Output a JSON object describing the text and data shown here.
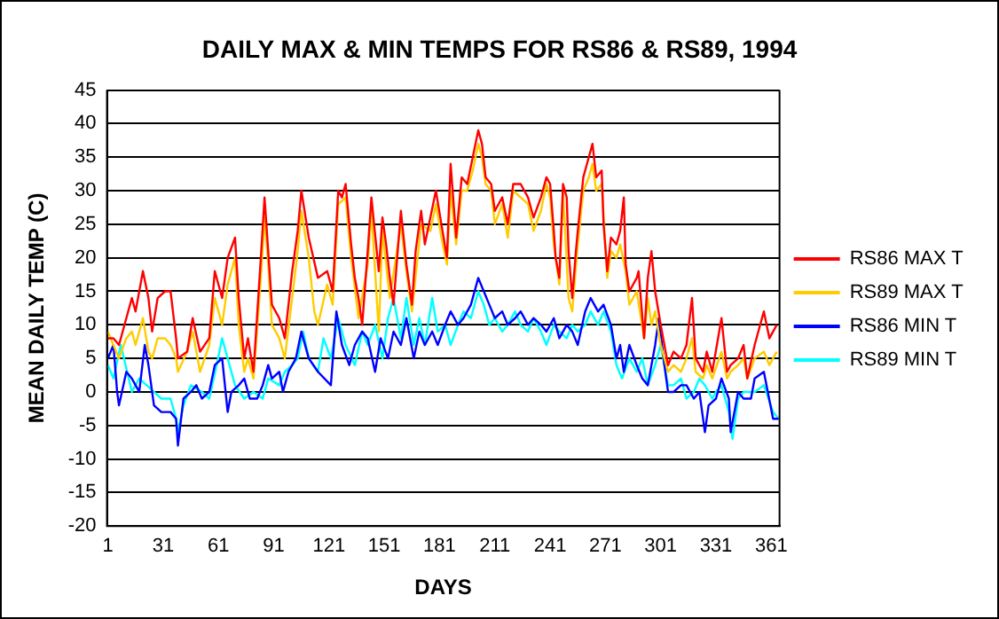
{
  "chart_data": {
    "type": "line",
    "title": "DAILY MAX & MIN TEMPS FOR RS86 & RS89, 1994",
    "xlabel": "DAYS",
    "ylabel": "MEAN DAILY TEMP (C)",
    "xlim": [
      0.5,
      365.5
    ],
    "xticks": [
      1,
      31,
      61,
      91,
      121,
      151,
      181,
      211,
      241,
      271,
      301,
      331,
      361
    ],
    "ylim": [
      -20,
      45
    ],
    "yticks": [
      -20,
      -15,
      -10,
      -5,
      0,
      5,
      10,
      15,
      20,
      25,
      30,
      35,
      40,
      45
    ],
    "grid": "y",
    "legend": "right",
    "marker": "none",
    "line_style": "solid",
    "series": [
      {
        "name": "RS86 MAX T",
        "color": "#ff0000",
        "x": [
          1,
          4,
          7,
          11,
          14,
          16,
          20,
          23,
          25,
          28,
          32,
          35,
          38,
          39,
          44,
          47,
          51,
          56,
          59,
          63,
          66,
          70,
          72,
          75,
          77,
          80,
          84,
          86,
          88,
          90,
          94,
          97,
          101,
          104,
          106,
          110,
          115,
          120,
          123,
          126,
          128,
          130,
          133,
          135,
          137,
          139,
          142,
          144,
          148,
          150,
          152,
          154,
          156,
          160,
          163,
          166,
          168,
          171,
          173,
          176,
          179,
          182,
          185,
          187,
          190,
          193,
          196,
          199,
          202,
          204,
          206,
          209,
          211,
          215,
          218,
          221,
          225,
          229,
          232,
          236,
          239,
          241,
          243,
          244,
          246,
          248,
          250,
          251,
          253,
          255,
          256,
          259,
          262,
          264,
          266,
          269,
          270,
          272,
          274,
          277,
          279,
          281,
          282,
          284,
          288,
          289,
          292,
          294,
          296,
          298,
          301,
          305,
          308,
          312,
          315,
          318,
          320,
          324,
          326,
          329,
          334,
          337,
          339,
          343,
          346,
          348,
          352,
          357,
          360,
          364
        ],
        "values": [
          8,
          8,
          7,
          11,
          14,
          12,
          18,
          14,
          9,
          14,
          15,
          15,
          8,
          5,
          6,
          11,
          6,
          8,
          18,
          14,
          20,
          23,
          14,
          5,
          8,
          3,
          20,
          29,
          21,
          13,
          11,
          8,
          18,
          24,
          30,
          23,
          17,
          18,
          15,
          30,
          29,
          31,
          22,
          17,
          14,
          10,
          21,
          29,
          18,
          26,
          22,
          17,
          13,
          27,
          19,
          13,
          21,
          27,
          22,
          26,
          30,
          25,
          20,
          34,
          23,
          32,
          31,
          35,
          39,
          37,
          32,
          31,
          27,
          29,
          25,
          31,
          31,
          29,
          26,
          29,
          32,
          31,
          24,
          20,
          17,
          31,
          29,
          21,
          14,
          21,
          24,
          32,
          35,
          37,
          32,
          33,
          25,
          18,
          23,
          22,
          24,
          29,
          19,
          15,
          17,
          18,
          8,
          17,
          21,
          15,
          10,
          4,
          6,
          5,
          7,
          14,
          5,
          3,
          6,
          3,
          11,
          3,
          4,
          5,
          7,
          2,
          7,
          12,
          8,
          10
        ]
      },
      {
        "name": "RS89 MAX T",
        "color": "#ffcc00",
        "x": [
          1,
          4,
          7,
          11,
          14,
          16,
          20,
          23,
          25,
          28,
          32,
          35,
          38,
          39,
          44,
          47,
          51,
          56,
          59,
          63,
          66,
          70,
          72,
          75,
          77,
          80,
          84,
          86,
          88,
          90,
          94,
          97,
          101,
          104,
          106,
          110,
          113,
          115,
          120,
          123,
          126,
          130,
          133,
          137,
          142,
          144,
          148,
          150,
          154,
          160,
          163,
          166,
          171,
          176,
          179,
          182,
          185,
          187,
          190,
          193,
          196,
          199,
          202,
          204,
          206,
          209,
          211,
          215,
          218,
          221,
          225,
          229,
          232,
          236,
          239,
          241,
          243,
          246,
          248,
          251,
          253,
          256,
          259,
          262,
          264,
          266,
          269,
          272,
          274,
          277,
          279,
          282,
          284,
          288,
          292,
          294,
          296,
          298,
          301,
          305,
          308,
          312,
          315,
          318,
          320,
          324,
          326,
          329,
          334,
          337,
          339,
          343,
          346,
          348,
          352,
          357,
          360,
          364
        ],
        "values": [
          9,
          7,
          5,
          8,
          9,
          7,
          11,
          6,
          5,
          8,
          8,
          7,
          5,
          3,
          6,
          9,
          3,
          7,
          14,
          10,
          16,
          20,
          10,
          3,
          5,
          2,
          17,
          26,
          19,
          10,
          8,
          5,
          14,
          21,
          27,
          20,
          12,
          10,
          16,
          13,
          28,
          29,
          20,
          11,
          19,
          27,
          9,
          24,
          14,
          25,
          18,
          12,
          25,
          24,
          28,
          23,
          19,
          30,
          22,
          30,
          30,
          33,
          37,
          35,
          31,
          30,
          25,
          28,
          23,
          30,
          29,
          28,
          24,
          27,
          31,
          29,
          22,
          16,
          30,
          14,
          12,
          22,
          30,
          32,
          34,
          30,
          31,
          17,
          21,
          20,
          22,
          18,
          13,
          15,
          8,
          14,
          10,
          12,
          7,
          3,
          4,
          3,
          5,
          8,
          3,
          2,
          4,
          2,
          6,
          2,
          3,
          4,
          5,
          2,
          5,
          6,
          4,
          6
        ]
      },
      {
        "name": "RS86 MIN T",
        "color": "#0000ff",
        "x": [
          1,
          4,
          6,
          7,
          11,
          14,
          18,
          21,
          23,
          26,
          30,
          35,
          38,
          39,
          42,
          46,
          49,
          52,
          56,
          59,
          63,
          66,
          68,
          72,
          75,
          78,
          82,
          85,
          88,
          90,
          94,
          96,
          99,
          103,
          106,
          110,
          115,
          122,
          125,
          128,
          132,
          135,
          139,
          142,
          146,
          149,
          153,
          156,
          160,
          163,
          167,
          170,
          173,
          177,
          180,
          184,
          187,
          191,
          194,
          198,
          202,
          205,
          208,
          211,
          215,
          218,
          222,
          225,
          229,
          232,
          236,
          239,
          243,
          246,
          250,
          253,
          256,
          260,
          263,
          267,
          270,
          274,
          277,
          279,
          281,
          284,
          288,
          291,
          294,
          298,
          300,
          303,
          305,
          308,
          312,
          315,
          319,
          322,
          325,
          327,
          331,
          334,
          338,
          339,
          343,
          346,
          350,
          352,
          357,
          362,
          365
        ],
        "values": [
          5,
          7,
          0,
          -2,
          3,
          2,
          0,
          7,
          4,
          -2,
          -3,
          -3,
          -4,
          -8,
          -1,
          0,
          1,
          -1,
          0,
          4,
          5,
          -3,
          0,
          1,
          2,
          -1,
          -1,
          1,
          4,
          2,
          3,
          0,
          3,
          5,
          9,
          5,
          3,
          1,
          12,
          7,
          4,
          7,
          9,
          8,
          3,
          8,
          5,
          9,
          7,
          11,
          5,
          9,
          7,
          9,
          7,
          10,
          12,
          10,
          11,
          13,
          17,
          15,
          13,
          11,
          12,
          10,
          11,
          12,
          10,
          11,
          10,
          9,
          11,
          8,
          10,
          9,
          7,
          12,
          14,
          12,
          13,
          10,
          5,
          7,
          3,
          7,
          4,
          2,
          1,
          7,
          11,
          4,
          0,
          0,
          1,
          1,
          -1,
          0,
          -6,
          -2,
          -1,
          2,
          -1,
          -6,
          0,
          -1,
          -1,
          2,
          3,
          -4,
          -4
        ]
      },
      {
        "name": "RS89 MIN T",
        "color": "#00ffff",
        "x": [
          1,
          4,
          8,
          14,
          18,
          22,
          26,
          30,
          35,
          38,
          39,
          42,
          46,
          52,
          56,
          60,
          63,
          66,
          70,
          75,
          80,
          85,
          88,
          94,
          97,
          101,
          104,
          107,
          110,
          115,
          118,
          122,
          126,
          130,
          135,
          139,
          142,
          146,
          150,
          153,
          156,
          160,
          163,
          167,
          170,
          173,
          177,
          180,
          184,
          187,
          191,
          194,
          198,
          202,
          205,
          208,
          211,
          215,
          218,
          222,
          225,
          229,
          232,
          236,
          239,
          243,
          246,
          250,
          253,
          256,
          260,
          263,
          267,
          270,
          274,
          277,
          280,
          284,
          288,
          291,
          294,
          298,
          301,
          305,
          308,
          312,
          315,
          319,
          322,
          325,
          329,
          331,
          334,
          338,
          340,
          343,
          346,
          350,
          352,
          357,
          362,
          365
        ],
        "values": [
          4,
          2,
          7,
          0,
          2,
          1,
          0,
          -1,
          -1,
          -4,
          -6,
          -2,
          1,
          0,
          -1,
          4,
          8,
          5,
          1,
          -1,
          0,
          -1,
          2,
          1,
          3,
          4,
          5,
          9,
          5,
          3,
          8,
          5,
          11,
          7,
          4,
          9,
          7,
          10,
          5,
          11,
          14,
          8,
          14,
          7,
          11,
          7,
          14,
          9,
          10,
          7,
          10,
          12,
          11,
          15,
          13,
          10,
          11,
          9,
          10,
          12,
          10,
          9,
          11,
          9,
          7,
          10,
          9,
          8,
          10,
          9,
          10,
          12,
          10,
          12,
          9,
          4,
          2,
          5,
          3,
          5,
          1,
          4,
          7,
          1,
          1,
          2,
          -1,
          0,
          2,
          1,
          -1,
          0,
          1,
          -3,
          -7,
          -1,
          0,
          0,
          0,
          1,
          -3,
          -4
        ]
      }
    ]
  }
}
